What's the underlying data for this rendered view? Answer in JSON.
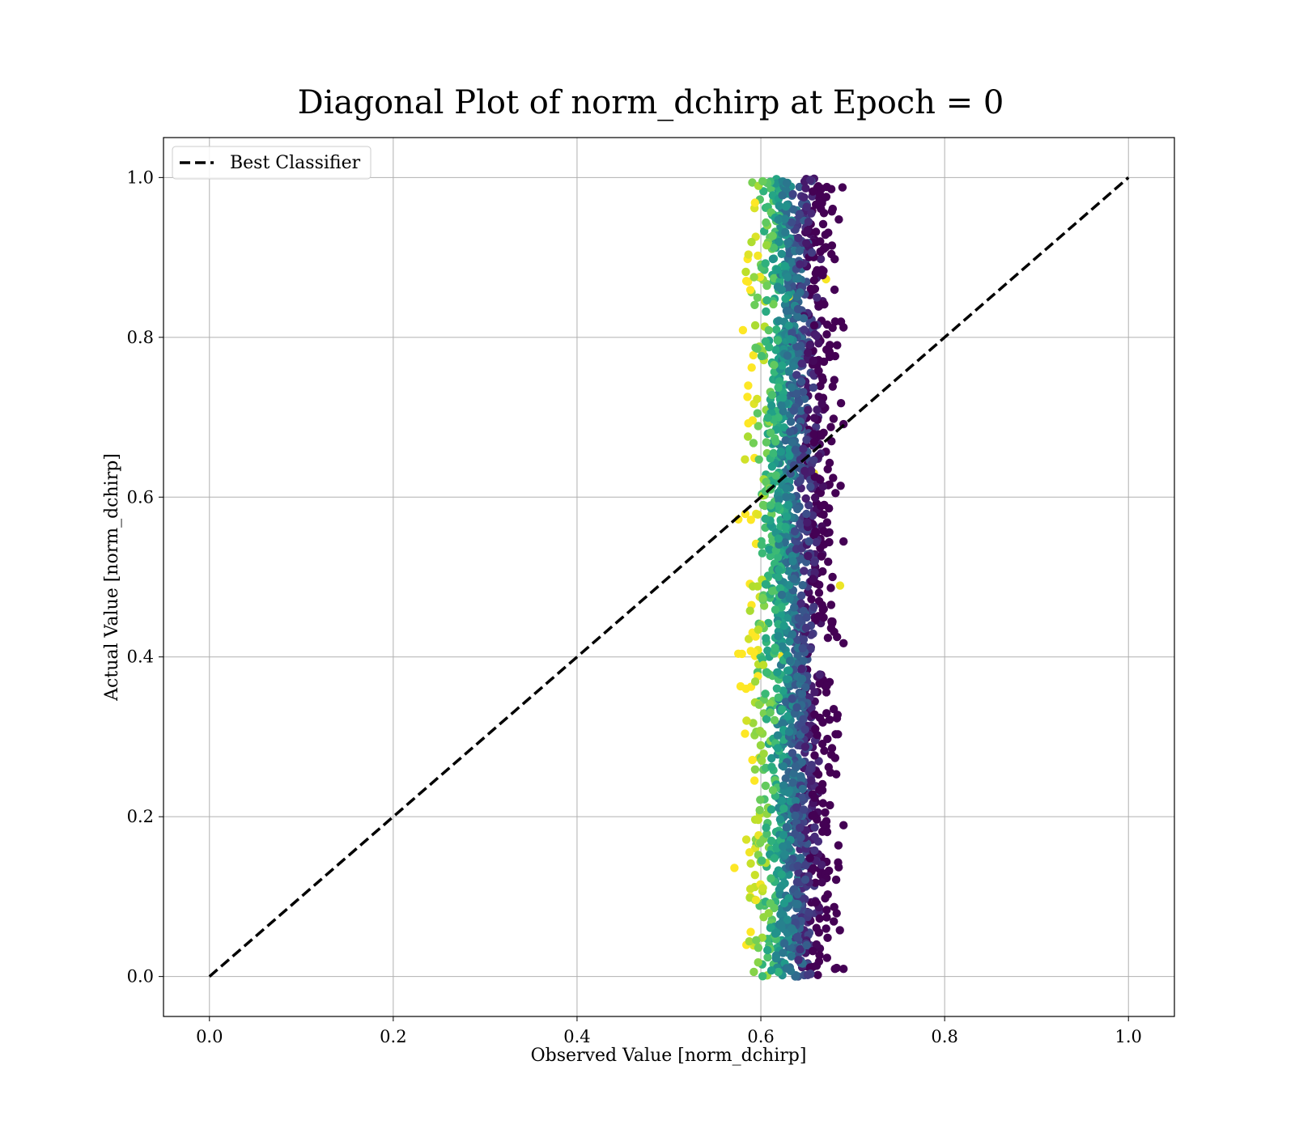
{
  "chart_data": {
    "type": "scatter",
    "title": "Diagonal Plot of norm_dchirp at Epoch = 0",
    "xlabel": "Observed Value [norm_dchirp]",
    "ylabel": "Actual Value [norm_dchirp]",
    "xlim": [
      -0.05,
      1.05
    ],
    "ylim": [
      -0.05,
      1.05
    ],
    "xticks": [
      "0.0",
      "0.2",
      "0.4",
      "0.6",
      "0.8",
      "1.0"
    ],
    "yticks": [
      "0.0",
      "0.2",
      "0.4",
      "0.6",
      "0.8",
      "1.0"
    ],
    "grid": true,
    "legend": {
      "placement": "upper-left",
      "entries": [
        "Best Classifier"
      ]
    },
    "series": [
      {
        "name": "Best Classifier",
        "kind": "line",
        "style": "dashed",
        "color": "#000000",
        "x": [
          0.0,
          1.0
        ],
        "y": [
          0.0,
          1.0
        ]
      },
      {
        "kind": "scatter",
        "colormap": "viridis",
        "x_range": [
          0.57,
          0.69
        ],
        "x_center": 0.635,
        "y_range": [
          0.0,
          1.0
        ],
        "point_count": 2000
      }
    ]
  }
}
